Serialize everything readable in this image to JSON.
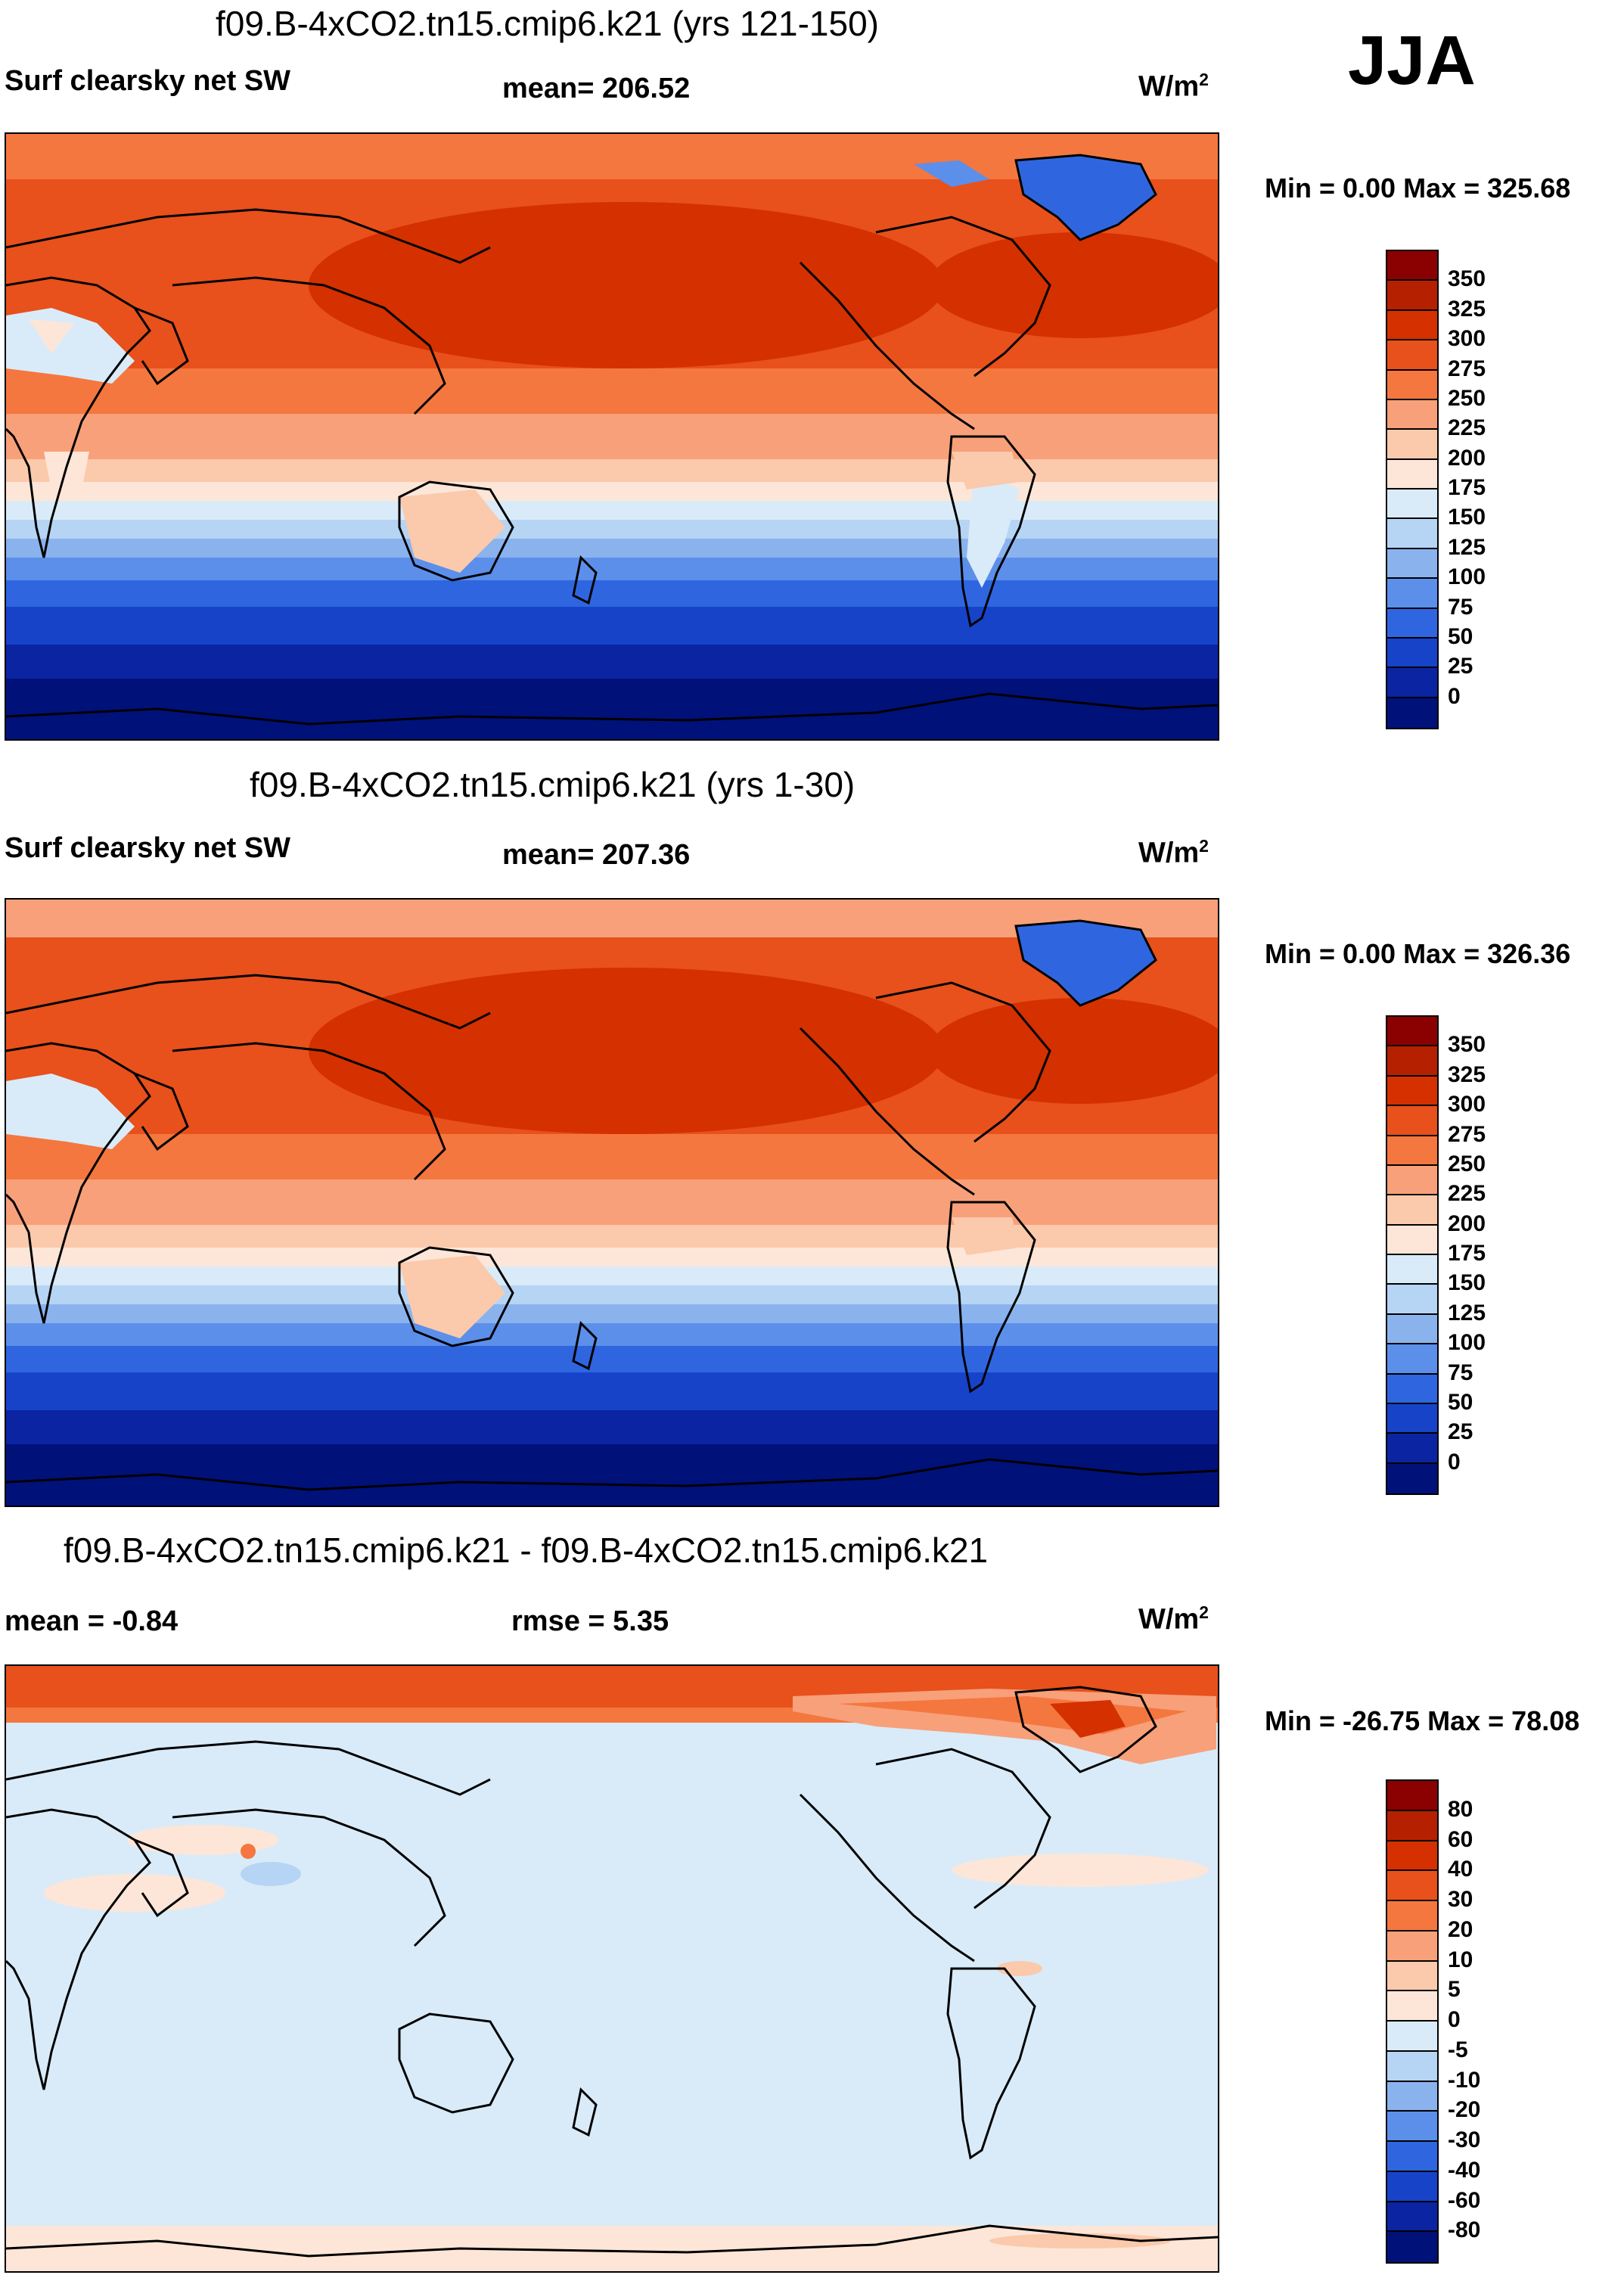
{
  "season": "JJA",
  "panels": [
    {
      "title": "f09.B-4xCO2.tn15.cmip6.k21 (yrs 121-150)",
      "left_label": "Surf clearsky net SW",
      "stat_label": "mean= 206.52",
      "units": "W/m",
      "units_exp": "2",
      "minmax": "Min =   0.00 Max = 325.68",
      "legend": [
        "350",
        "325",
        "300",
        "275",
        "250",
        "225",
        "200",
        "175",
        "150",
        "125",
        "100",
        "75",
        "50",
        "25",
        "0"
      ],
      "colors": [
        "#8b0000",
        "#b52000",
        "#d43000",
        "#e8501c",
        "#f4773f",
        "#f8a07a",
        "#fbc9ab",
        "#fde6d8",
        "#d9ebf8",
        "#b6d4f4",
        "#8ab3ee",
        "#5c8fea",
        "#2f66e0",
        "#1743c9",
        "#0a24a2",
        "#01117a"
      ]
    },
    {
      "title": "f09.B-4xCO2.tn15.cmip6.k21 (yrs 1-30)",
      "left_label": "Surf clearsky net SW",
      "stat_label": "mean= 207.36",
      "units": "W/m",
      "units_exp": "2",
      "minmax": "Min =   0.00 Max = 326.36",
      "legend": [
        "350",
        "325",
        "300",
        "275",
        "250",
        "225",
        "200",
        "175",
        "150",
        "125",
        "100",
        "75",
        "50",
        "25",
        "0"
      ],
      "colors": [
        "#8b0000",
        "#b52000",
        "#d43000",
        "#e8501c",
        "#f4773f",
        "#f8a07a",
        "#fbc9ab",
        "#fde6d8",
        "#d9ebf8",
        "#b6d4f4",
        "#8ab3ee",
        "#5c8fea",
        "#2f66e0",
        "#1743c9",
        "#0a24a2",
        "#01117a"
      ]
    },
    {
      "title": "f09.B-4xCO2.tn15.cmip6.k21 - f09.B-4xCO2.tn15.cmip6.k21",
      "left_label": "mean =  -0.84",
      "stat_label": "rmse =   5.35",
      "units": "W/m",
      "units_exp": "2",
      "minmax": "Min = -26.75 Max =  78.08",
      "legend": [
        "80",
        "60",
        "40",
        "30",
        "20",
        "10",
        "5",
        "0",
        "-5",
        "-10",
        "-20",
        "-30",
        "-40",
        "-60",
        "-80"
      ],
      "colors": [
        "#8b0000",
        "#b52000",
        "#d43000",
        "#e8501c",
        "#f4773f",
        "#f8a07a",
        "#fbc9ab",
        "#fde6d8",
        "#d9ebf8",
        "#b6d4f4",
        "#8ab3ee",
        "#5c8fea",
        "#2f66e0",
        "#1743c9",
        "#0a24a2",
        "#01117a"
      ]
    }
  ]
}
